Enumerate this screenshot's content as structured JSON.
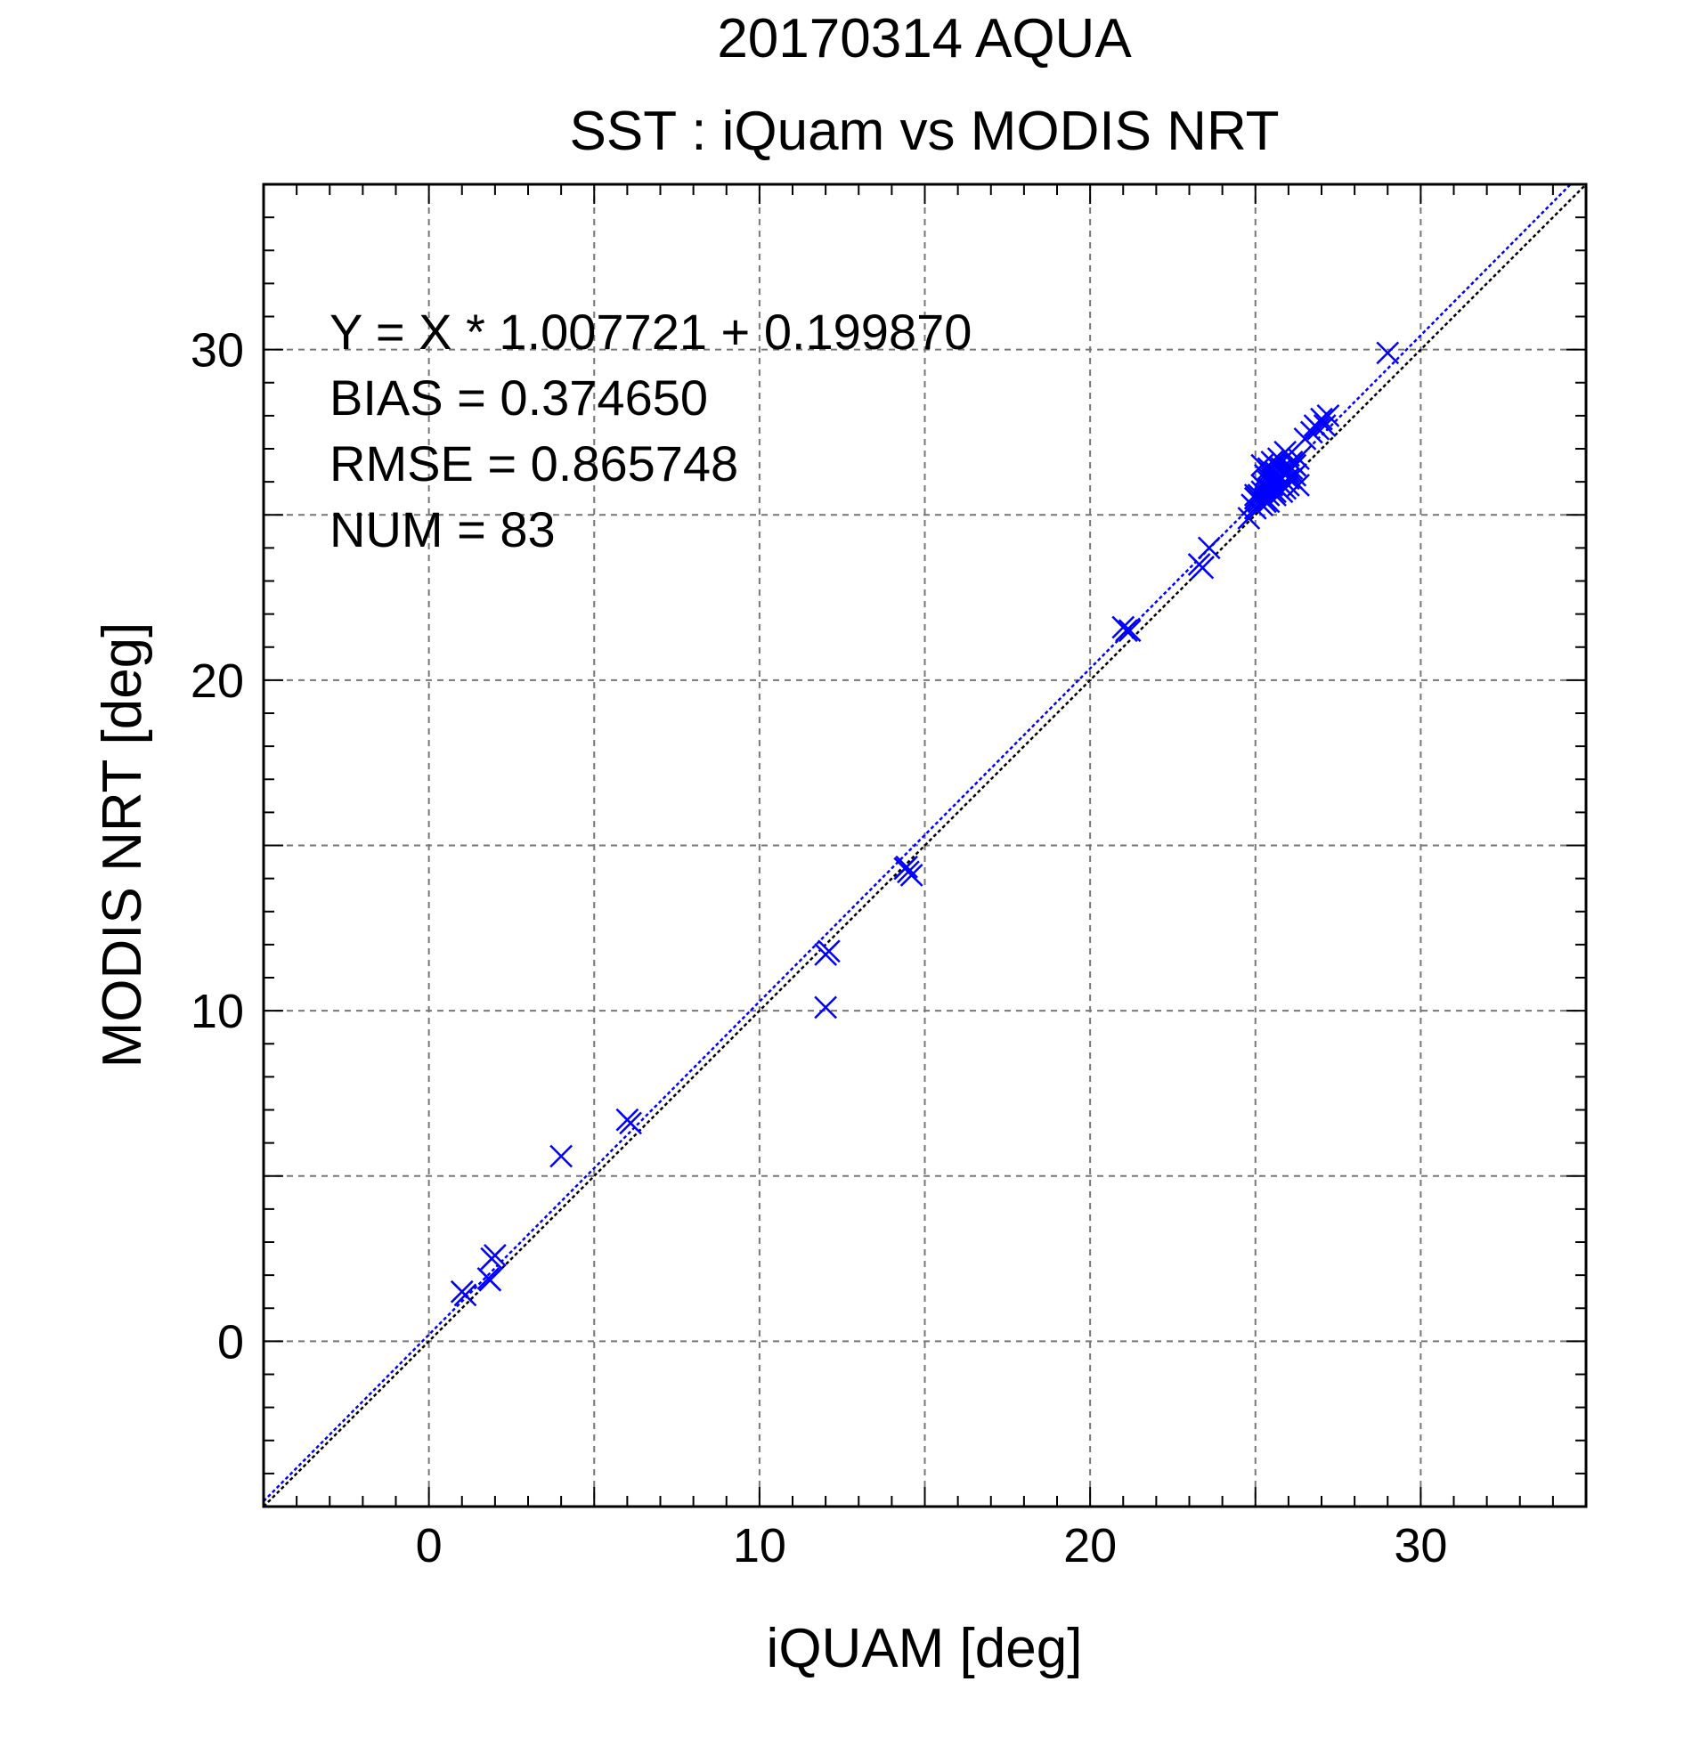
{
  "chart_data": {
    "type": "scatter",
    "title": "20170314 AQUA",
    "subtitle": "SST : iQuam vs MODIS NRT",
    "xlabel": "iQUAM [deg]",
    "ylabel": "MODIS NRT [deg]",
    "xlim": [
      -5,
      35
    ],
    "ylim": [
      -5,
      35
    ],
    "xticks": [
      0,
      10,
      20,
      30
    ],
    "yticks": [
      0,
      10,
      20,
      30
    ],
    "minor_step": 1,
    "grid_step": 5,
    "grid": true,
    "stats": [
      "Y = X * 1.007721 + 0.199870",
      "BIAS = 0.374650",
      "RMSE = 0.865748",
      "NUM = 83"
    ],
    "fit": {
      "slope": 1.007721,
      "intercept": 0.19987,
      "color": "#0000ff"
    },
    "identity": {
      "color": "#000000"
    },
    "marker": {
      "shape": "x",
      "color": "#0000ff"
    },
    "points": [
      [
        1.0,
        1.5
      ],
      [
        1.1,
        1.4
      ],
      [
        1.8,
        1.9
      ],
      [
        1.9,
        2.5
      ],
      [
        2.0,
        2.6
      ],
      [
        1.85,
        1.85
      ],
      [
        4.0,
        5.6
      ],
      [
        6.0,
        6.7
      ],
      [
        6.1,
        6.6
      ],
      [
        12.0,
        11.7
      ],
      [
        12.1,
        11.8
      ],
      [
        12.0,
        10.1
      ],
      [
        14.4,
        14.3
      ],
      [
        14.5,
        14.2
      ],
      [
        14.6,
        14.1
      ],
      [
        14.45,
        14.35
      ],
      [
        21.0,
        21.6
      ],
      [
        21.1,
        21.5
      ],
      [
        21.2,
        21.5
      ],
      [
        23.3,
        23.5
      ],
      [
        23.4,
        23.4
      ],
      [
        23.6,
        24.0
      ],
      [
        24.8,
        24.9
      ],
      [
        24.9,
        25.3
      ],
      [
        25.0,
        25.5
      ],
      [
        25.0,
        25.2
      ],
      [
        25.1,
        25.4
      ],
      [
        25.1,
        25.6
      ],
      [
        25.2,
        25.3
      ],
      [
        25.2,
        26.5
      ],
      [
        25.2,
        25.7
      ],
      [
        25.3,
        25.5
      ],
      [
        25.3,
        26.2
      ],
      [
        25.3,
        25.8
      ],
      [
        25.4,
        25.4
      ],
      [
        25.4,
        26.0
      ],
      [
        25.4,
        26.4
      ],
      [
        25.5,
        25.7
      ],
      [
        25.5,
        26.1
      ],
      [
        25.5,
        26.3
      ],
      [
        25.6,
        25.9
      ],
      [
        25.6,
        25.6
      ],
      [
        25.6,
        26.5
      ],
      [
        25.7,
        26.2
      ],
      [
        25.7,
        25.8
      ],
      [
        25.7,
        26.0
      ],
      [
        25.8,
        25.7
      ],
      [
        25.8,
        26.4
      ],
      [
        25.8,
        26.6
      ],
      [
        25.9,
        26.0
      ],
      [
        25.9,
        26.9
      ],
      [
        26.0,
        26.3
      ],
      [
        26.0,
        25.9
      ],
      [
        26.1,
        26.6
      ],
      [
        26.1,
        26.1
      ],
      [
        26.2,
        26.5
      ],
      [
        26.3,
        26.7
      ],
      [
        26.3,
        25.9
      ],
      [
        26.5,
        27.3
      ],
      [
        26.7,
        27.5
      ],
      [
        26.8,
        27.7
      ],
      [
        26.9,
        27.6
      ],
      [
        27.0,
        27.9
      ],
      [
        27.1,
        27.7
      ],
      [
        27.2,
        28.0
      ],
      [
        25.5,
        25.9
      ],
      [
        25.9,
        26.3
      ],
      [
        26.0,
        26.8
      ],
      [
        25.4,
        25.6
      ],
      [
        25.6,
        26.3
      ],
      [
        25.2,
        25.9
      ],
      [
        26.2,
        26.2
      ],
      [
        25.7,
        26.7
      ],
      [
        25.3,
        25.4
      ],
      [
        25.8,
        26.1
      ],
      [
        26.1,
        26.4
      ],
      [
        25.5,
        26.6
      ],
      [
        25.9,
        25.8
      ],
      [
        25.0,
        25.6
      ],
      [
        25.6,
        25.7
      ],
      [
        26.0,
        26.1
      ],
      [
        25.4,
        25.8
      ],
      [
        29.0,
        29.9
      ]
    ]
  }
}
